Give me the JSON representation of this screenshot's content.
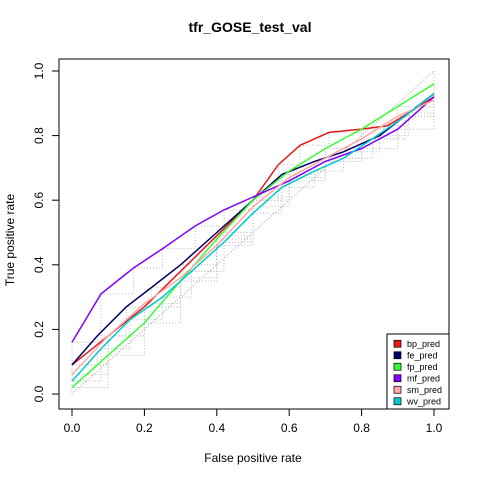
{
  "chart_data": {
    "type": "line",
    "title": "tfr_GOSE_test_val",
    "xlabel": "False positive rate",
    "ylabel": "True positive rate",
    "xlim": [
      0,
      1
    ],
    "ylim": [
      0,
      1
    ],
    "x_ticks": [
      "0.0",
      "0.2",
      "0.4",
      "0.6",
      "0.8",
      "1.0"
    ],
    "y_ticks": [
      "0.0",
      "0.2",
      "0.4",
      "0.6",
      "0.8",
      "1.0"
    ],
    "grid": false,
    "legend_position": "bottom-right",
    "diagonal_reference": true,
    "series": [
      {
        "name": "bp_pred",
        "color": "#e41a1c",
        "x": [
          0.0,
          0.1,
          0.2,
          0.3,
          0.4,
          0.5,
          0.57,
          0.63,
          0.71,
          0.8,
          0.87,
          0.93,
          1.0
        ],
        "y": [
          0.09,
          0.18,
          0.27,
          0.38,
          0.49,
          0.6,
          0.71,
          0.77,
          0.81,
          0.82,
          0.83,
          0.87,
          0.92
        ]
      },
      {
        "name": "fe_pred",
        "color": "#000066",
        "x": [
          0.0,
          0.07,
          0.15,
          0.22,
          0.3,
          0.4,
          0.5,
          0.58,
          0.67,
          0.75,
          0.85,
          0.93,
          1.0
        ],
        "y": [
          0.09,
          0.18,
          0.27,
          0.33,
          0.4,
          0.5,
          0.6,
          0.68,
          0.72,
          0.75,
          0.8,
          0.87,
          0.93
        ]
      },
      {
        "name": "fp_pred",
        "color": "#33ff33",
        "x": [
          0.0,
          0.1,
          0.2,
          0.3,
          0.4,
          0.5,
          0.6,
          0.7,
          0.8,
          0.9,
          1.0
        ],
        "y": [
          0.02,
          0.12,
          0.22,
          0.35,
          0.48,
          0.6,
          0.69,
          0.76,
          0.82,
          0.89,
          0.96
        ]
      },
      {
        "name": "mf_pred",
        "color": "#7f00ff",
        "x": [
          0.0,
          0.08,
          0.17,
          0.25,
          0.34,
          0.42,
          0.5,
          0.6,
          0.7,
          0.8,
          0.9,
          1.0
        ],
        "y": [
          0.16,
          0.31,
          0.39,
          0.45,
          0.52,
          0.57,
          0.61,
          0.66,
          0.72,
          0.76,
          0.82,
          0.92
        ]
      },
      {
        "name": "sm_pred",
        "color": "#ffa6a6",
        "x": [
          0.0,
          0.1,
          0.2,
          0.3,
          0.4,
          0.5,
          0.6,
          0.7,
          0.8,
          0.9,
          1.0
        ],
        "y": [
          0.06,
          0.18,
          0.28,
          0.36,
          0.46,
          0.58,
          0.67,
          0.73,
          0.79,
          0.86,
          0.91
        ]
      },
      {
        "name": "wv_pred",
        "color": "#00cccc",
        "x": [
          0.0,
          0.08,
          0.16,
          0.25,
          0.33,
          0.42,
          0.5,
          0.58,
          0.67,
          0.75,
          0.83,
          0.92,
          1.0
        ],
        "y": [
          0.04,
          0.14,
          0.23,
          0.3,
          0.38,
          0.47,
          0.56,
          0.64,
          0.69,
          0.73,
          0.79,
          0.86,
          0.93
        ]
      }
    ]
  }
}
